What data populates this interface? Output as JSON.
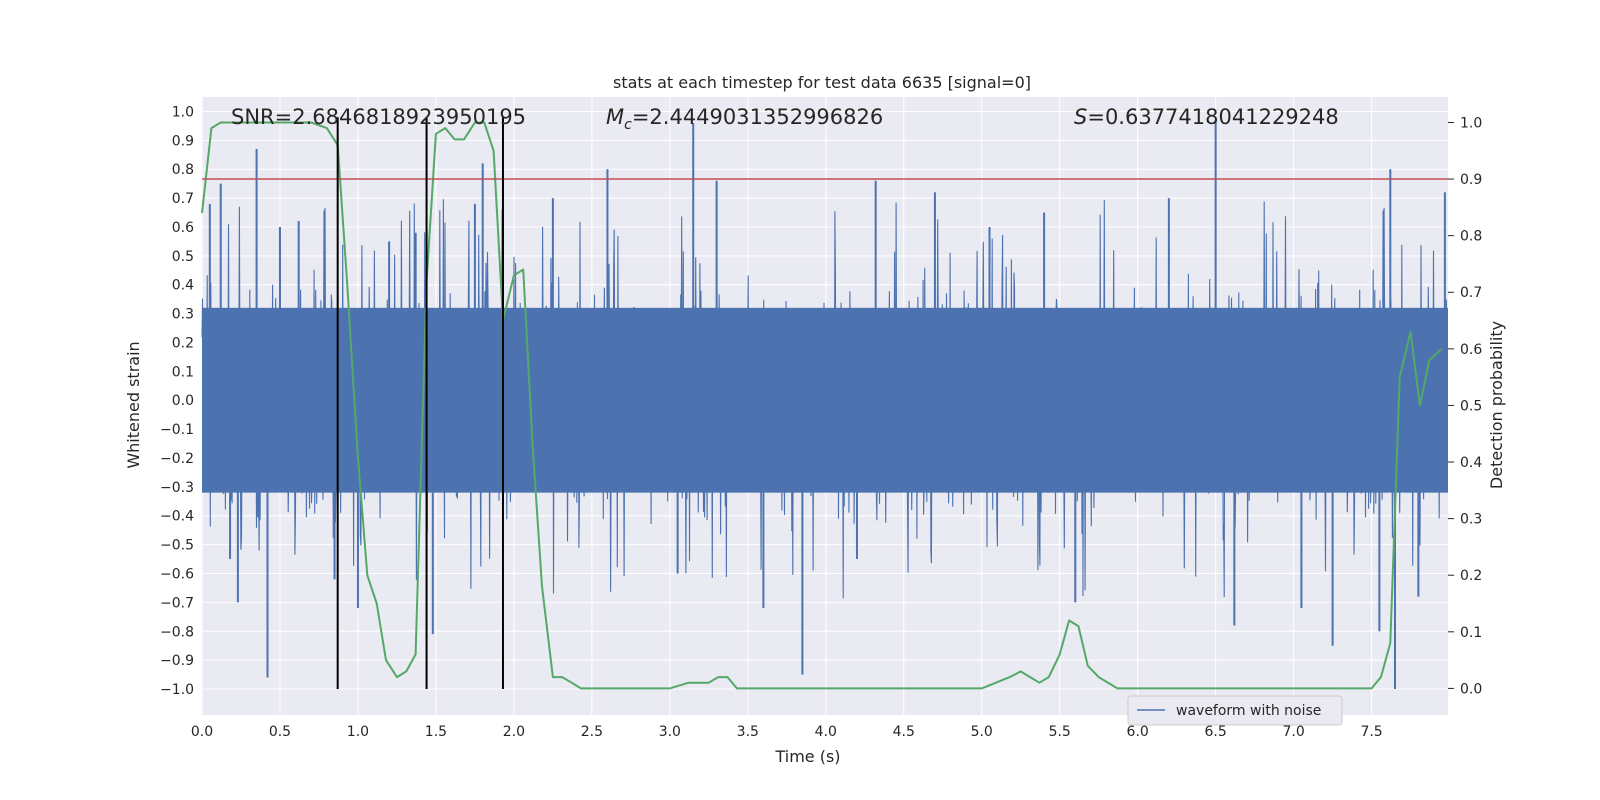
{
  "chart_data": {
    "type": "line",
    "title": "stats at each timestep for test data 6635 [signal=0]",
    "xlabel": "Time (s)",
    "ylabel": "Whitened strain",
    "y2label": "Detection probability",
    "xlim": [
      0.0,
      7.99
    ],
    "ylim": [
      -1.09,
      1.05
    ],
    "y2lim": [
      -0.047,
      1.045
    ],
    "x_ticks": [
      "0.0",
      "0.5",
      "1.0",
      "1.5",
      "2.0",
      "2.5",
      "3.0",
      "3.5",
      "4.0",
      "4.5",
      "5.0",
      "5.5",
      "6.0",
      "6.5",
      "7.0",
      "7.5"
    ],
    "y_ticks": [
      "1.0",
      "0.9",
      "0.8",
      "0.7",
      "0.6",
      "0.5",
      "0.4",
      "0.3",
      "0.2",
      "0.1",
      "0.0",
      "-0.1",
      "-0.2",
      "-0.3",
      "-0.4",
      "-0.5",
      "-0.6",
      "-0.7",
      "-0.8",
      "-0.9",
      "-1.0"
    ],
    "y2_ticks": [
      "1.0",
      "0.9",
      "0.8",
      "0.7",
      "0.6",
      "0.5",
      "0.4",
      "0.3",
      "0.2",
      "0.1",
      "0.0"
    ],
    "annotations": {
      "snr": "SNR=2.6846818923950195",
      "mc_symbol": "M",
      "mc_sub": "c",
      "mc_value": "=2.4449031352996826",
      "s_symbol": "S",
      "s_value": "=0.6377418041229248"
    },
    "legend": {
      "label": "waveform with noise",
      "location": "lower-right"
    },
    "threshold_y2": 0.9,
    "vertical_lines_x": [
      0.87,
      1.44,
      1.93
    ],
    "series": [
      {
        "name": "waveform with noise",
        "color": "#4c72b0",
        "description": "dense whitened strain noise, 0-8 s",
        "band": 0.32,
        "spikes": [
          {
            "x": 0.05,
            "y": 0.68
          },
          {
            "x": 0.12,
            "y": 0.75
          },
          {
            "x": 0.18,
            "y": -0.55
          },
          {
            "x": 0.23,
            "y": -0.7
          },
          {
            "x": 0.35,
            "y": 0.87
          },
          {
            "x": 0.42,
            "y": -0.96
          },
          {
            "x": 0.5,
            "y": 0.6
          },
          {
            "x": 0.62,
            "y": 0.62
          },
          {
            "x": 0.85,
            "y": -0.62
          },
          {
            "x": 1.0,
            "y": -0.72
          },
          {
            "x": 1.2,
            "y": 0.55
          },
          {
            "x": 1.37,
            "y": 0.58
          },
          {
            "x": 1.48,
            "y": -0.81
          },
          {
            "x": 1.75,
            "y": 0.68
          },
          {
            "x": 1.8,
            "y": 0.82
          },
          {
            "x": 2.25,
            "y": 0.7
          },
          {
            "x": 2.6,
            "y": 0.8
          },
          {
            "x": 3.05,
            "y": -0.6
          },
          {
            "x": 3.15,
            "y": 0.96
          },
          {
            "x": 3.3,
            "y": 0.76
          },
          {
            "x": 3.6,
            "y": -0.72
          },
          {
            "x": 3.85,
            "y": -0.95
          },
          {
            "x": 4.2,
            "y": -0.55
          },
          {
            "x": 4.32,
            "y": 0.76
          },
          {
            "x": 4.7,
            "y": 0.72
          },
          {
            "x": 5.05,
            "y": 0.6
          },
          {
            "x": 5.4,
            "y": 0.65
          },
          {
            "x": 5.6,
            "y": -0.7
          },
          {
            "x": 6.2,
            "y": 0.7
          },
          {
            "x": 6.5,
            "y": 0.97
          },
          {
            "x": 6.62,
            "y": -0.78
          },
          {
            "x": 7.05,
            "y": -0.72
          },
          {
            "x": 7.25,
            "y": -0.85
          },
          {
            "x": 7.55,
            "y": -0.8
          },
          {
            "x": 7.62,
            "y": 0.8
          },
          {
            "x": 7.65,
            "y": -1.0
          },
          {
            "x": 7.8,
            "y": -0.68
          },
          {
            "x": 7.97,
            "y": 0.72
          }
        ]
      },
      {
        "name": "detection probability",
        "axis": "y2",
        "color": "#55a868",
        "x": [
          0.0,
          0.06,
          0.12,
          0.25,
          0.4,
          0.55,
          0.7,
          0.8,
          0.87,
          0.93,
          1.0,
          1.06,
          1.12,
          1.18,
          1.25,
          1.31,
          1.37,
          1.44,
          1.5,
          1.56,
          1.62,
          1.68,
          1.75,
          1.81,
          1.87,
          1.93,
          2.0,
          2.06,
          2.12,
          2.18,
          2.25,
          2.31,
          2.37,
          2.43,
          2.5,
          2.62,
          2.75,
          2.87,
          3.0,
          3.12,
          3.18,
          3.25,
          3.31,
          3.37,
          3.43,
          3.5,
          3.62,
          3.75,
          3.87,
          4.0,
          4.25,
          4.5,
          4.75,
          5.0,
          5.18,
          5.25,
          5.31,
          5.37,
          5.43,
          5.5,
          5.56,
          5.62,
          5.68,
          5.75,
          5.87,
          6.0,
          6.25,
          6.5,
          6.75,
          7.0,
          7.25,
          7.5,
          7.56,
          7.62,
          7.68,
          7.75,
          7.81,
          7.87,
          7.95
        ],
        "y": [
          0.84,
          0.99,
          1.0,
          1.0,
          1.0,
          1.0,
          1.0,
          0.99,
          0.96,
          0.72,
          0.41,
          0.2,
          0.15,
          0.05,
          0.02,
          0.03,
          0.06,
          0.72,
          0.98,
          0.99,
          0.97,
          0.97,
          1.0,
          1.0,
          0.95,
          0.65,
          0.73,
          0.74,
          0.43,
          0.18,
          0.02,
          0.02,
          0.01,
          0.0,
          0.0,
          0.0,
          0.0,
          0.0,
          0.0,
          0.01,
          0.01,
          0.01,
          0.02,
          0.02,
          0.0,
          0.0,
          0.0,
          0.0,
          0.0,
          0.0,
          0.0,
          0.0,
          0.0,
          0.0,
          0.02,
          0.03,
          0.02,
          0.01,
          0.02,
          0.06,
          0.12,
          0.11,
          0.04,
          0.02,
          0.0,
          0.0,
          0.0,
          0.0,
          0.0,
          0.0,
          0.0,
          0.0,
          0.02,
          0.08,
          0.55,
          0.63,
          0.5,
          0.58,
          0.6
        ]
      }
    ],
    "colors": {
      "plot_bg": "#eaeaf2",
      "grid": "#ffffff",
      "threshold": "#c44e52",
      "vline": "#000000",
      "text": "#262626"
    }
  }
}
